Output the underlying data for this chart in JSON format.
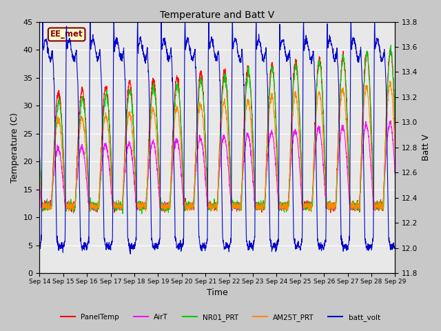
{
  "title": "Temperature and Batt V",
  "xlabel": "Time",
  "ylabel_left": "Temperature (C)",
  "ylabel_right": "Batt V",
  "annotation": "EE_met",
  "annotation_color": "#8B0000",
  "annotation_bg": "#FFFFCC",
  "xlim": [
    0,
    15
  ],
  "ylim_left": [
    0,
    45
  ],
  "ylim_right": [
    11.8,
    13.8
  ],
  "xtick_labels": [
    "Sep 14",
    "Sep 15",
    "Sep 16",
    "Sep 17",
    "Sep 18",
    "Sep 19",
    "Sep 20",
    "Sep 21",
    "Sep 22",
    "Sep 23",
    "Sep 24",
    "Sep 25",
    "Sep 26",
    "Sep 27",
    "Sep 28",
    "Sep 29"
  ],
  "ytick_left": [
    0,
    5,
    10,
    15,
    20,
    25,
    30,
    35,
    40,
    45
  ],
  "ytick_right": [
    11.8,
    12.0,
    12.2,
    12.4,
    12.6,
    12.8,
    13.0,
    13.2,
    13.4,
    13.6,
    13.8
  ],
  "colors": {
    "PanelTemp": "#FF0000",
    "AirT": "#FF00FF",
    "NR01_PRT": "#00CC00",
    "AM25T_PRT": "#FF8800",
    "batt_volt": "#0000CC"
  },
  "legend_labels": [
    "PanelTemp",
    "AirT",
    "NR01_PRT",
    "AM25T_PRT",
    "batt_volt"
  ],
  "fig_bg_color": "#C8C8C8",
  "plot_bg_color": "#E8E8E8",
  "n_days": 15,
  "pts_per_day": 144
}
